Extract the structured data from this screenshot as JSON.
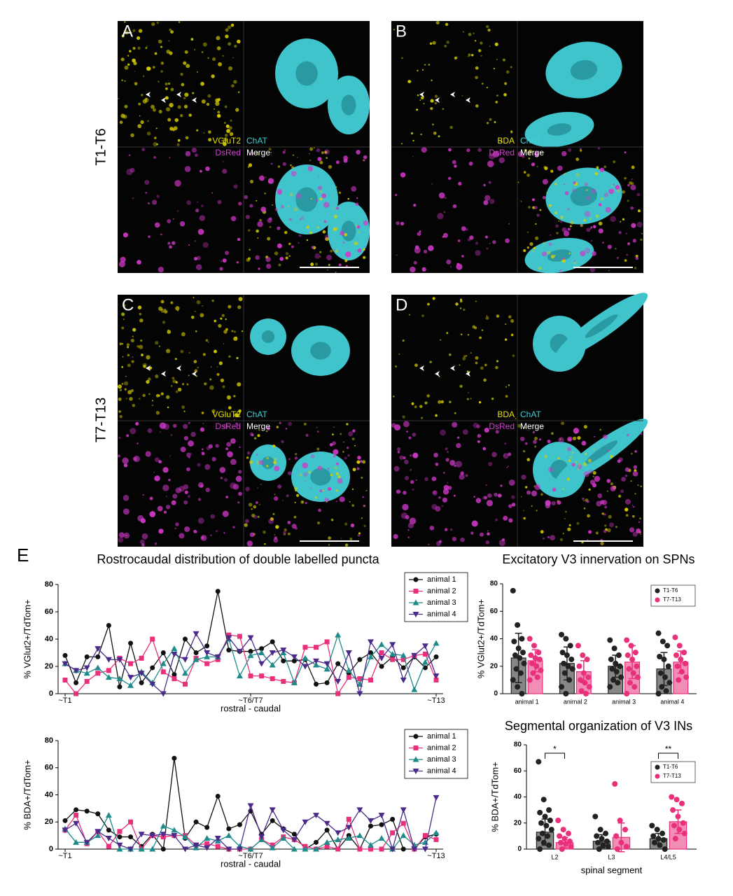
{
  "figure": {
    "section_label": "E",
    "rows": [
      {
        "label": "T1-T6"
      },
      {
        "label": "T7-T13"
      }
    ],
    "panels": [
      {
        "letter": "A",
        "channels": [
          "VGluT2",
          "ChAT",
          "DsRed",
          "Merge"
        ]
      },
      {
        "letter": "B",
        "channels": [
          "BDA",
          "ChAT",
          "DsRed",
          "Merge"
        ]
      },
      {
        "letter": "C",
        "channels": [
          "VGluT2",
          "ChAT",
          "DsRed",
          "Merge"
        ]
      },
      {
        "letter": "D",
        "channels": [
          "BDA",
          "ChAT",
          "DsRed",
          "Merge"
        ]
      }
    ]
  },
  "chart_data": [
    {
      "type": "line",
      "title": "Rostrocaudal distribution of double labelled puncta",
      "ylabel": "% VGlut2+/TdTom+",
      "xlabel": "rostral - caudal",
      "x": [
        1,
        2,
        3,
        4,
        5,
        6,
        7,
        8,
        9,
        10,
        11,
        12,
        13,
        14,
        15,
        16,
        17,
        18,
        19,
        20,
        21,
        22,
        23,
        24,
        25,
        26,
        27,
        28,
        29,
        30,
        31,
        32,
        33,
        34,
        35
      ],
      "xlim": [
        1,
        35
      ],
      "xticks": [
        {
          "value": 1,
          "label": "~T1"
        },
        {
          "value": 18,
          "label": "~T6/T7"
        },
        {
          "value": 35,
          "label": "~T13"
        }
      ],
      "ylim": [
        0,
        80
      ],
      "yticks": [
        0,
        20,
        40,
        60,
        80
      ],
      "legend": "upper right",
      "series": [
        {
          "name": "animal 1",
          "color": "#111111",
          "values": [
            28,
            8,
            27,
            27,
            50,
            5,
            37,
            8,
            19,
            30,
            14,
            40,
            30,
            35,
            75,
            32,
            31,
            31,
            33,
            38,
            24,
            24,
            25,
            7,
            8,
            22,
            15,
            25,
            30,
            20,
            27,
            19,
            27,
            19,
            27
          ]
        },
        {
          "name": "animal 2",
          "color": "#e8317a",
          "values": [
            10,
            0,
            9,
            15,
            17,
            26,
            22,
            26,
            40,
            16,
            11,
            7,
            26,
            22,
            25,
            43,
            42,
            13,
            13,
            11,
            9,
            8,
            34,
            34,
            38,
            0,
            12,
            11,
            10,
            30,
            25,
            25,
            28,
            29,
            10
          ]
        },
        {
          "name": "animal 3",
          "color": "#1f8a8a",
          "values": [
            22,
            17,
            15,
            19,
            12,
            11,
            6,
            16,
            8,
            22,
            33,
            15,
            25,
            27,
            27,
            40,
            13,
            28,
            30,
            21,
            30,
            8,
            26,
            21,
            18,
            43,
            17,
            7,
            27,
            36,
            29,
            28,
            3,
            23,
            37
          ]
        },
        {
          "name": "animal 4",
          "color": "#4b2a8a",
          "values": [
            22,
            17,
            19,
            33,
            25,
            25,
            12,
            15,
            7,
            0,
            29,
            25,
            44,
            30,
            27,
            41,
            31,
            41,
            22,
            30,
            32,
            27,
            20,
            24,
            22,
            9,
            30,
            0,
            38,
            26,
            36,
            10,
            28,
            35,
            13
          ]
        }
      ]
    },
    {
      "type": "line",
      "ylabel": "% BDA+/TdTom+",
      "xlabel": "rostral - caudal",
      "x": [
        1,
        2,
        3,
        4,
        5,
        6,
        7,
        8,
        9,
        10,
        11,
        12,
        13,
        14,
        15,
        16,
        17,
        18,
        19,
        20,
        21,
        22,
        23,
        24,
        25,
        26,
        27,
        28,
        29,
        30,
        31,
        32,
        33,
        34,
        35
      ],
      "xlim": [
        1,
        35
      ],
      "xticks": [
        {
          "value": 1,
          "label": "~T1"
        },
        {
          "value": 18,
          "label": "~T6/T7"
        },
        {
          "value": 35,
          "label": "~T13"
        }
      ],
      "ylim": [
        0,
        80
      ],
      "yticks": [
        0,
        20,
        40,
        60,
        80
      ],
      "legend": "upper right",
      "series": [
        {
          "name": "animal 1",
          "color": "#111111",
          "values": [
            21,
            29,
            28,
            26,
            14,
            9,
            9,
            2,
            11,
            0,
            67,
            8,
            20,
            16,
            39,
            15,
            18,
            28,
            11,
            21,
            15,
            11,
            0,
            5,
            14,
            0,
            10,
            0,
            17,
            18,
            22,
            0,
            0,
            9,
            11
          ]
        },
        {
          "name": "animal 2",
          "color": "#e8317a",
          "values": [
            14,
            25,
            4,
            13,
            2,
            13,
            20,
            0,
            10,
            9,
            10,
            10,
            3,
            4,
            2,
            0,
            0,
            0,
            7,
            3,
            9,
            7,
            2,
            0,
            2,
            0,
            22,
            0,
            0,
            0,
            12,
            19,
            0,
            10,
            7
          ]
        },
        {
          "name": "animal 3",
          "color": "#1f8a8a",
          "values": [
            15,
            5,
            5,
            10,
            25,
            0,
            0,
            0,
            0,
            17,
            14,
            9,
            1,
            8,
            6,
            10,
            2,
            0,
            7,
            1,
            8,
            0,
            0,
            0,
            5,
            7,
            8,
            10,
            3,
            8,
            0,
            10,
            3,
            5,
            12
          ]
        },
        {
          "name": "animal 4",
          "color": "#4b2a8a",
          "values": [
            14,
            19,
            5,
            13,
            8,
            3,
            0,
            11,
            10,
            11,
            10,
            0,
            3,
            1,
            8,
            0,
            0,
            32,
            9,
            29,
            14,
            7,
            20,
            25,
            19,
            12,
            16,
            29,
            21,
            25,
            0,
            29,
            0,
            0,
            38
          ]
        }
      ]
    },
    {
      "type": "bar",
      "title": "Excitatory V3 innervation on SPNs",
      "ylabel": "% VGlut2+/TdTom+",
      "categories": [
        "animal 1",
        "animal 2",
        "animal 3",
        "animal 4"
      ],
      "ylim": [
        0,
        80
      ],
      "yticks": [
        0,
        20,
        40,
        60,
        80
      ],
      "legend": "upper right",
      "series": [
        {
          "name": "T1-T6",
          "color": "#222222",
          "values": [
            26,
            22,
            20,
            18
          ],
          "errors": [
            18,
            12,
            8,
            12
          ],
          "points": [
            [
              75,
              50,
              40,
              38,
              33,
              30,
              28,
              26,
              22,
              18,
              15,
              10,
              5,
              0
            ],
            [
              43,
              40,
              35,
              30,
              28,
              25,
              22,
              20,
              18,
              15,
              10,
              5,
              0
            ],
            [
              39,
              33,
              28,
              25,
              22,
              20,
              18,
              16,
              12,
              10,
              8,
              5
            ],
            [
              44,
              38,
              35,
              27,
              25,
              20,
              15,
              12,
              8,
              5,
              2,
              0
            ]
          ]
        },
        {
          "name": "T7-T13",
          "color": "#e8317a",
          "values": [
            24,
            16,
            23,
            23
          ],
          "errors": [
            8,
            8,
            12,
            8
          ],
          "points": [
            [
              40,
              35,
              30,
              28,
              26,
              25,
              22,
              20,
              17,
              15,
              12,
              10
            ],
            [
              35,
              28,
              25,
              20,
              15,
              12,
              10,
              8,
              5,
              2,
              0
            ],
            [
              39,
              35,
              30,
              28,
              25,
              20,
              18,
              15,
              12,
              8,
              5,
              0
            ],
            [
              41,
              35,
              30,
              28,
              25,
              22,
              20,
              16,
              12,
              10
            ]
          ]
        }
      ]
    },
    {
      "type": "bar",
      "title": "Segmental organization of V3 INs",
      "ylabel": "% BDA+/TdTom+",
      "xlabel": "spinal segment",
      "categories": [
        "L2",
        "L3",
        "L4/L5"
      ],
      "ylim": [
        0,
        80
      ],
      "yticks": [
        0,
        20,
        40,
        60,
        80
      ],
      "legend": "upper right",
      "annotations": [
        {
          "label": "*",
          "category": "L2"
        },
        {
          "label": "**",
          "category": "L4/L5"
        }
      ],
      "series": [
        {
          "name": "T1-T6",
          "color": "#222222",
          "values": [
            13,
            6,
            8
          ],
          "errors": [
            10,
            5,
            4
          ],
          "points": [
            [
              67,
              38,
              30,
              28,
              25,
              22,
              20,
              18,
              15,
              12,
              10,
              8,
              5,
              3,
              0
            ],
            [
              25,
              15,
              12,
              10,
              8,
              6,
              5,
              3,
              2,
              0
            ],
            [
              18,
              15,
              12,
              10,
              8,
              7,
              5,
              3,
              0
            ]
          ]
        },
        {
          "name": "T7-T13",
          "color": "#e8317a",
          "values": [
            5,
            9,
            21
          ],
          "errors": [
            4,
            11,
            9
          ],
          "points": [
            [
              22,
              15,
              12,
              10,
              8,
              6,
              5,
              4,
              2,
              0
            ],
            [
              50,
              22,
              15,
              10,
              5,
              2,
              0
            ],
            [
              40,
              38,
              35,
              30,
              25,
              20,
              18,
              15,
              12,
              8
            ]
          ]
        }
      ]
    }
  ]
}
